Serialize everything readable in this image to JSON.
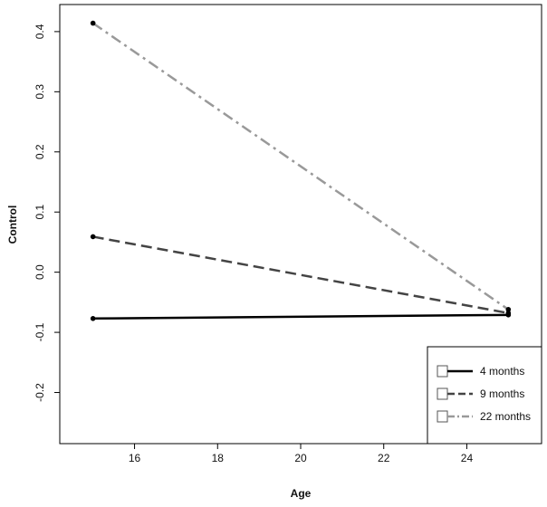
{
  "chart_data": {
    "type": "line",
    "xlabel": "Age",
    "ylabel": "Control",
    "xlim": [
      14.2,
      25.8
    ],
    "ylim": [
      -0.285,
      0.445
    ],
    "x_ticks": [
      16,
      18,
      20,
      22,
      24
    ],
    "x_tick_labels": [
      "16",
      "18",
      "20",
      "22",
      "24"
    ],
    "y_ticks": [
      -0.2,
      -0.1,
      0.0,
      0.1,
      0.2,
      0.3,
      0.4
    ],
    "y_tick_labels": [
      "-0.2",
      "-0.1",
      "0.0",
      "0.1",
      "0.2",
      "0.3",
      "0.4"
    ],
    "grid": false,
    "legend_position": "bottom-right",
    "series": [
      {
        "name": "4 months",
        "x": [
          15,
          25
        ],
        "y": [
          -0.077,
          -0.071
        ],
        "color": "#000000",
        "dash": "solid"
      },
      {
        "name": "9 months",
        "x": [
          15,
          25
        ],
        "y": [
          0.059,
          -0.068
        ],
        "color": "#444444",
        "dash": "dashed"
      },
      {
        "name": "22 months",
        "x": [
          15,
          25
        ],
        "y": [
          0.414,
          -0.062
        ],
        "color": "#999999",
        "dash": "dashdot"
      }
    ]
  }
}
